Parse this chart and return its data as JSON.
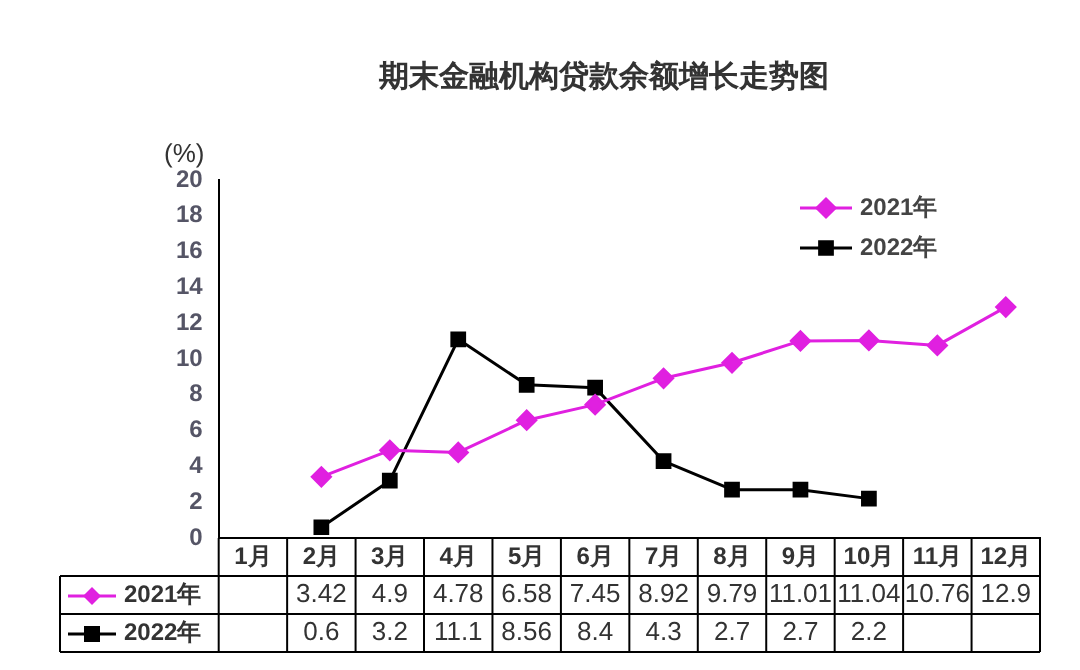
{
  "chart_data": {
    "type": "line",
    "title": "期末金融机构贷款余额增长走势图",
    "ylabel": "(%)",
    "categories": [
      "1月",
      "2月",
      "3月",
      "4月",
      "5月",
      "6月",
      "7月",
      "8月",
      "9月",
      "10月",
      "11月",
      "12月"
    ],
    "series": [
      {
        "name": "2021年",
        "color": "#e020e0",
        "marker": "diamond",
        "values": [
          null,
          3.42,
          4.9,
          4.78,
          6.58,
          7.45,
          8.92,
          9.79,
          11.01,
          11.04,
          10.76,
          12.9
        ]
      },
      {
        "name": "2022年",
        "color": "#000000",
        "marker": "square",
        "values": [
          null,
          0.6,
          3.2,
          11.1,
          8.56,
          8.4,
          4.3,
          2.7,
          2.7,
          2.2,
          null,
          null
        ]
      }
    ],
    "ylim": [
      0,
      20
    ],
    "yticks": [
      0,
      2,
      4,
      6,
      8,
      10,
      12,
      14,
      16,
      18,
      20
    ],
    "grid": false,
    "legend": "top right",
    "data_labels": true
  }
}
